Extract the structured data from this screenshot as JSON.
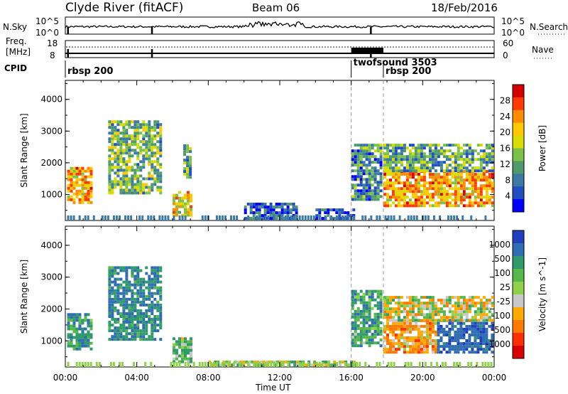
{
  "header": {
    "station": "Clyde River (fitACF)",
    "beam": "Beam 06",
    "date": "18/Feb/2016"
  },
  "noise_strip": {
    "left_label": "N.Sky",
    "right_label": "N.Search",
    "left_ticks": [
      "10^5",
      "10^0"
    ],
    "right_ticks": [
      "10^5",
      "10^0"
    ]
  },
  "freq_strip": {
    "left_label_line1": "Freq.",
    "left_label_line2": "[MHz]",
    "right_label": "Nave",
    "left_ticks": [
      "18",
      "8"
    ],
    "right_ticks": [
      "60",
      "0"
    ]
  },
  "cpid": {
    "label": "CPID",
    "segments": [
      {
        "name": "rbsp 200",
        "start_hour": 0.0
      },
      {
        "name": "twofsound 3503",
        "start_hour": 16.0
      },
      {
        "name": "rbsp 200",
        "start_hour": 17.8
      }
    ]
  },
  "power_panel": {
    "ylabel": "Slant Range [km]",
    "colorbar_label": "Power [dB]",
    "colorbar_ticks": [
      "28",
      "24",
      "20",
      "16",
      "12",
      "8",
      "4"
    ],
    "colorbar_colors": [
      "#d40000",
      "#ff3a00",
      "#ff8c00",
      "#ffc800",
      "#d8dc00",
      "#7cc24a",
      "#4f9a6a",
      "#3b7aa4",
      "#1f4fc0",
      "#0000ff"
    ]
  },
  "velocity_panel": {
    "ylabel": "Slant Range [km]",
    "colorbar_label": "Velocity [m s^-1]",
    "colorbar_ticks": [
      "1000",
      "500",
      "100",
      "25",
      "-25",
      "-100",
      "-500",
      "-1000"
    ],
    "colorbar_colors": [
      "#1f3fbf",
      "#2f6db3",
      "#2f9a6a",
      "#56b84a",
      "#8fd14a",
      "#c8c8c8",
      "#ffaa00",
      "#ff7a00",
      "#ff3000",
      "#d80000"
    ]
  },
  "chart_data": {
    "type": "heatmap",
    "xlabel": "Time UT",
    "x_ticks": [
      "00:00",
      "04:00",
      "08:00",
      "12:00",
      "16:00",
      "20:00",
      "00:00"
    ],
    "xlim_hours": [
      0,
      24
    ],
    "ylim_km": [
      180,
      4600
    ],
    "y_ticks": [
      1000,
      2000,
      3000,
      4000
    ],
    "mode_change_lines_hours": [
      16.0,
      17.8
    ],
    "noise_spikes_hours": [
      0.15,
      4.85,
      17.1
    ],
    "power_blobs": [
      {
        "t0": 0.1,
        "t1": 1.5,
        "r0": 700,
        "r1": 1800,
        "value": 22
      },
      {
        "t0": 2.4,
        "t1": 5.3,
        "r0": 1000,
        "r1": 3300,
        "value": 14
      },
      {
        "t0": 6.0,
        "t1": 7.0,
        "r0": 300,
        "r1": 1100,
        "value": 20
      },
      {
        "t0": 6.6,
        "t1": 7.0,
        "r0": 1500,
        "r1": 2500,
        "value": 12
      },
      {
        "t0": 10.0,
        "t1": 13.0,
        "r0": 200,
        "r1": 700,
        "value": 6
      },
      {
        "t0": 14.0,
        "t1": 16.2,
        "r0": 200,
        "r1": 500,
        "value": 6
      },
      {
        "t0": 16.0,
        "t1": 17.7,
        "r0": 800,
        "r1": 2600,
        "value": 10
      },
      {
        "t0": 17.8,
        "t1": 23.9,
        "r0": 600,
        "r1": 1700,
        "value": 22
      },
      {
        "t0": 17.8,
        "t1": 23.9,
        "r0": 1700,
        "r1": 2600,
        "value": 12
      }
    ],
    "velocity_blobs": [
      {
        "t0": 0.1,
        "t1": 1.5,
        "r0": 700,
        "r1": 1800,
        "value": 300
      },
      {
        "t0": 2.4,
        "t1": 5.3,
        "r0": 1000,
        "r1": 3300,
        "value": 400
      },
      {
        "t0": 6.0,
        "t1": 7.0,
        "r0": 300,
        "r1": 1100,
        "value": 150
      },
      {
        "t0": 8.0,
        "t1": 16.2,
        "r0": 200,
        "r1": 350,
        "value": 50
      },
      {
        "t0": 16.0,
        "t1": 17.7,
        "r0": 800,
        "r1": 2600,
        "value": 250
      },
      {
        "t0": 17.8,
        "t1": 20.8,
        "r0": 600,
        "r1": 1600,
        "value": -200
      },
      {
        "t0": 20.8,
        "t1": 23.9,
        "r0": 600,
        "r1": 1600,
        "value": 600
      },
      {
        "t0": 17.8,
        "t1": 23.9,
        "r0": 1600,
        "r1": 2400,
        "value": 0
      }
    ]
  }
}
